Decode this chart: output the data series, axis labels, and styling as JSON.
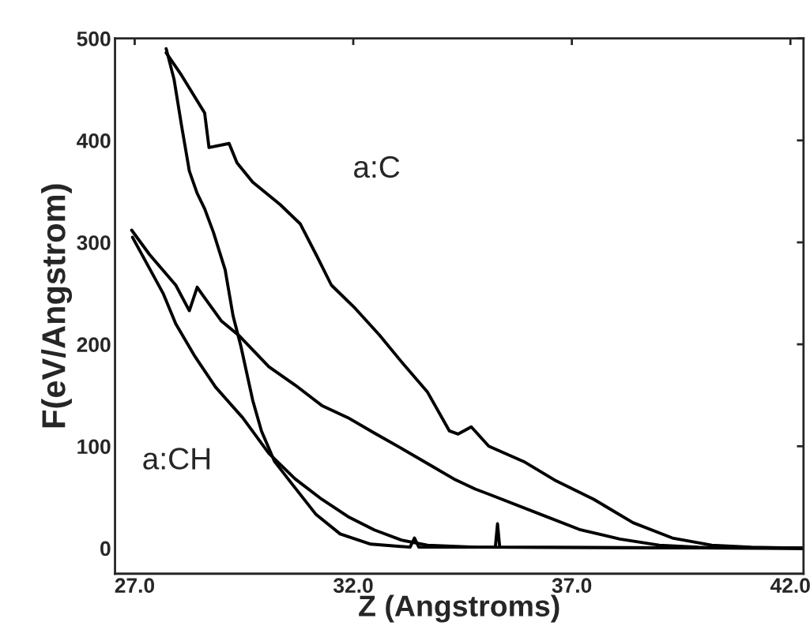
{
  "chart_data": {
    "type": "line",
    "xlabel": "Z (Angstroms)",
    "ylabel": "F(eV/Angstrom)",
    "xlim": [
      26.55,
      42.3
    ],
    "ylim": [
      -25,
      500
    ],
    "xticks": [
      {
        "value": 27,
        "label": "27.0"
      },
      {
        "value": 32,
        "label": "32.0"
      },
      {
        "value": 37,
        "label": "37.0"
      },
      {
        "value": 42,
        "label": "42.0"
      }
    ],
    "yticks": [
      0,
      100,
      200,
      300,
      400,
      500
    ],
    "grid": false,
    "legend": false,
    "marker": "none",
    "line_style": "solid",
    "annotations": [
      "a:C",
      "a:CH"
    ],
    "series": [
      {
        "color": "#000000",
        "x": [
          27.72,
          28.07,
          28.6,
          28.7,
          29.16,
          29.34,
          29.7,
          30.33,
          30.79,
          31.15,
          31.5,
          32.05,
          32.6,
          33.1,
          33.7,
          34.2,
          34.4,
          34.7,
          35.1,
          35.9,
          36.6,
          37.5,
          38.4,
          39.3,
          40.2,
          41.1,
          42.3
        ],
        "values": [
          486,
          464,
          427,
          393,
          397,
          378,
          359,
          337,
          318,
          288,
          258,
          235,
          209,
          183,
          153,
          115,
          112,
          119,
          100,
          85,
          67,
          48,
          25,
          10,
          3,
          1,
          0
        ]
      },
      {
        "color": "#000000",
        "x": [
          27.72,
          27.9,
          28.07,
          28.25,
          28.43,
          28.6,
          28.8,
          29.07,
          29.25,
          29.43,
          29.7,
          29.9,
          30.2,
          30.6,
          31.15,
          31.7,
          32.4,
          33.3,
          33.4,
          33.5,
          34.8,
          35.25,
          35.3,
          35.35,
          42.3
        ],
        "values": [
          490,
          460,
          415,
          370,
          348,
          333,
          310,
          273,
          228,
          198,
          145,
          115,
          85,
          63,
          33,
          14,
          4,
          1,
          10,
          1,
          1,
          1,
          24,
          1,
          0
        ]
      },
      {
        "color": "#000000",
        "x": [
          26.93,
          27.34,
          27.94,
          28.25,
          28.43,
          28.56,
          28.98,
          29.4,
          30.07,
          30.67,
          31.28,
          31.88,
          32.48,
          33.1,
          33.7,
          34.3,
          34.79,
          35.1,
          36.3,
          37.2,
          38.1,
          39.0,
          39.9,
          42.3
        ],
        "values": [
          312,
          288,
          258,
          233,
          256,
          248,
          223,
          208,
          178,
          160,
          140,
          128,
          113,
          98,
          83,
          68,
          58,
          53,
          33,
          18,
          9,
          3,
          1,
          0
        ]
      },
      {
        "color": "#000000",
        "x": [
          26.95,
          27.65,
          27.94,
          28.38,
          28.85,
          29.47,
          30.07,
          30.67,
          31.28,
          31.88,
          32.48,
          33.1,
          33.7,
          34.8,
          42.3
        ],
        "values": [
          305,
          250,
          220,
          188,
          158,
          128,
          93,
          68,
          48,
          31,
          18,
          8,
          3,
          1,
          0
        ]
      }
    ]
  }
}
